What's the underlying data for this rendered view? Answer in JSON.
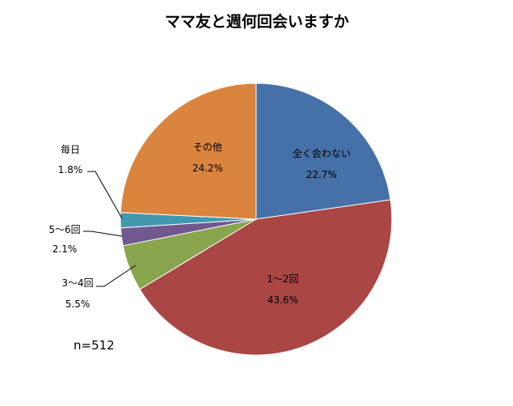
{
  "chart_data": {
    "type": "pie",
    "title": "ママ友と週何回会いますか",
    "note": "n=512",
    "slices": [
      {
        "name": "全く会わない",
        "value": 22.7,
        "label": "22.7%",
        "color": "#4570a8"
      },
      {
        "name": "1～2回",
        "value": 43.6,
        "label": "43.6%",
        "color": "#aa4644"
      },
      {
        "name": "3～4回",
        "value": 5.5,
        "label": "5.5%",
        "color": "#89a54e"
      },
      {
        "name": "5～6回",
        "value": 2.1,
        "label": "2.1%",
        "color": "#71588f"
      },
      {
        "name": "毎日",
        "value": 1.8,
        "label": "1.8%",
        "color": "#4298af"
      },
      {
        "name": "その他",
        "value": 24.2,
        "label": "24.2%",
        "color": "#db843d"
      }
    ],
    "start_angle": "12 o'clock",
    "direction": "clockwise",
    "legend": "none"
  }
}
